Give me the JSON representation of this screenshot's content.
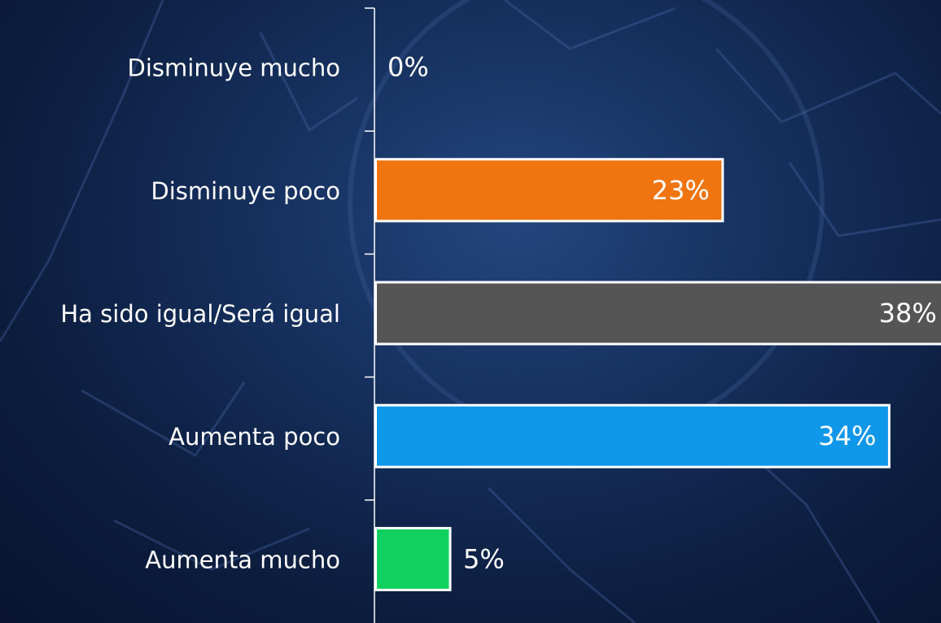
{
  "chart_data": {
    "type": "barh",
    "categories": [
      "Disminuye mucho",
      "Disminuye poco",
      "Ha sido igual/Será igual",
      "Aumenta poco",
      "Aumenta mucho"
    ],
    "values": [
      0,
      23,
      38,
      34,
      5
    ],
    "value_labels": [
      "0%",
      "23%",
      "38%",
      "34%",
      "5%"
    ],
    "colors": [
      "#f07510",
      "#f07510",
      "#555555",
      "#0f97ea",
      "#10d060"
    ]
  }
}
